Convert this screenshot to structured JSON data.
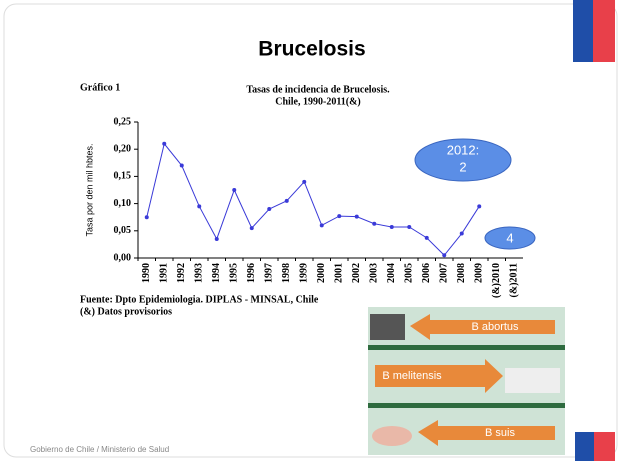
{
  "slide": {
    "title": "Brucelosis",
    "figure_label": "Gráfico 1",
    "source": [
      "Fuente: Dpto Epidemiologia. DIPLAS - MINSAL, Chile",
      "(&) Datos provisorios"
    ],
    "bubble_1": [
      "2012:",
      "2"
    ],
    "bubble_2": "4",
    "image_labels": [
      "B abortus",
      "B melitensis",
      "B suis"
    ],
    "footer": "Gobierno de Chile / Ministerio de Salud"
  },
  "chart_data": {
    "type": "line",
    "title": [
      "Tasas de incidencia de Brucelosis.",
      "Chile, 1990-2011(&)"
    ],
    "y_label": "Tasa por den mil hbtes.",
    "categories": [
      "1990",
      "1991",
      "1992",
      "1993",
      "1994",
      "1995",
      "1996",
      "1997",
      "1998",
      "1999",
      "2000",
      "2001",
      "2002",
      "2003",
      "2004",
      "2005",
      "2006",
      "2007",
      "2008",
      "2009",
      "(&)2010",
      "(&)2011"
    ],
    "series": [
      {
        "name": "Tasa",
        "color": "#3a3ad8",
        "values": [
          0.075,
          0.21,
          0.17,
          0.095,
          0.035,
          0.125,
          0.055,
          0.09,
          0.105,
          0.14,
          0.06,
          0.077,
          0.076,
          0.063,
          0.057,
          0.057,
          0.037,
          0.005,
          0.045,
          0.095,
          null,
          null
        ]
      }
    ],
    "ylim": [
      0,
      0.25
    ],
    "yticks": [
      {
        "value": 0,
        "label": "0,00"
      },
      {
        "value": 0.05,
        "label": "0,05"
      },
      {
        "value": 0.1,
        "label": "0,10"
      },
      {
        "value": 0.15,
        "label": "0,15"
      },
      {
        "value": 0.2,
        "label": "0,20"
      },
      {
        "value": 0.25,
        "label": "0,25"
      }
    ]
  }
}
